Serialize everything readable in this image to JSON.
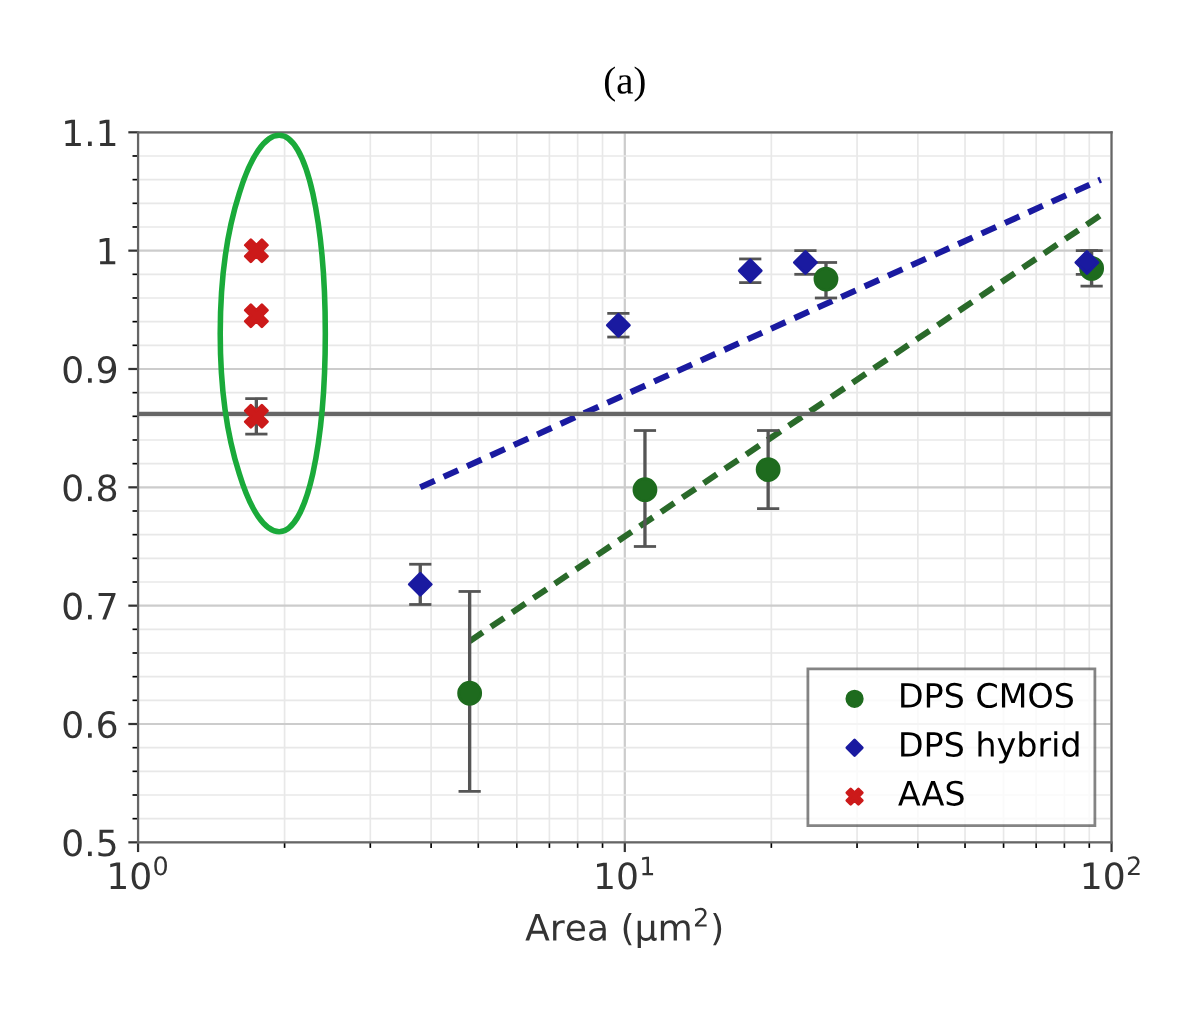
{
  "chart_data": {
    "type": "scatter",
    "title": "(a)",
    "xlabel": "Area (μm$^{2}$)",
    "log": "x",
    "xlim": [
      1,
      100
    ],
    "xticks": [
      {
        "value": 1,
        "label": "10$^{0}$"
      },
      {
        "value": 10,
        "label": "10$^{1}$"
      },
      {
        "value": 100,
        "label": "10$^{2}$"
      }
    ],
    "ylim": [
      0.5,
      1.1
    ],
    "yticks": [
      0.5,
      0.6,
      0.7,
      0.8,
      0.9,
      {
        "value": 1,
        "label": "1"
      },
      1.1
    ],
    "grid": true,
    "legend": "bottom right",
    "series": [
      {
        "name": "DPS CMOS",
        "color": "#1e6b1e",
        "marker": "circle",
        "x": [
          4.8,
          11.0,
          19.7,
          25.9,
          91
        ],
        "values": [
          0.626,
          0.798,
          0.815,
          0.976,
          0.985
        ],
        "errors": [
          [
            0.543,
            0.712
          ],
          [
            0.75,
            0.848
          ],
          [
            0.782,
            0.848
          ],
          [
            0.96,
            0.99
          ],
          [
            0.97,
            1.0
          ]
        ]
      },
      {
        "name": "DPS hybrid",
        "color": "#1a1aa0",
        "marker": "diamond",
        "x": [
          3.8,
          9.7,
          18.1,
          23.5,
          89
        ],
        "values": [
          0.718,
          0.937,
          0.983,
          0.99,
          0.99
        ],
        "errors": [
          0.017,
          0.01,
          0.01,
          0.01,
          0.01
        ]
      },
      {
        "name": "AAS",
        "color": "#cc1a1a",
        "marker": "cross",
        "x": [
          1.75,
          1.75,
          1.75
        ],
        "values": [
          1.0,
          0.945,
          0.86
        ],
        "errors": [
          null,
          null,
          0.015
        ]
      },
      {
        "type": "line",
        "color": "#1a1aa0",
        "line_style": "dashed",
        "x": [
          3.8,
          95
        ],
        "values": [
          0.8,
          1.06
        ]
      },
      {
        "type": "line",
        "color": "#2a6a2a",
        "line_style": "dashed",
        "x": [
          4.8,
          95
        ],
        "values": [
          0.67,
          1.03
        ]
      }
    ],
    "ref_lines": [
      {
        "axis": "y",
        "value": 0.862,
        "color": "#666666"
      }
    ]
  }
}
